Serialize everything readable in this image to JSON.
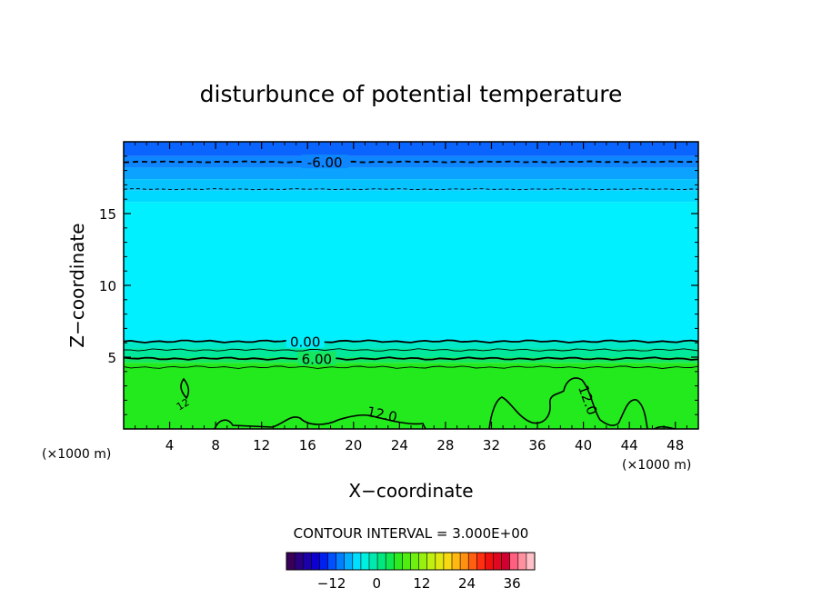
{
  "chart_data": {
    "type": "heatmap",
    "title": "disturbunce of potential temperature",
    "xlabel": "X−coordinate",
    "ylabel": "Z−coordinate",
    "x_unit": "(×1000 m)",
    "x_unit_right": "(×1000 m)",
    "xlim": [
      0,
      50
    ],
    "ylim": [
      0,
      20
    ],
    "x_ticks": [
      4,
      8,
      12,
      16,
      20,
      24,
      28,
      32,
      36,
      40,
      44,
      48
    ],
    "y_ticks": [
      5,
      10,
      15
    ],
    "field_layers": [
      {
        "z_from": 19.0,
        "z_to": 20.0,
        "value": -12,
        "color": "#0a64ff"
      },
      {
        "z_from": 18.2,
        "z_to": 19.0,
        "value": -9,
        "color": "#0d86ff"
      },
      {
        "z_from": 17.4,
        "z_to": 18.2,
        "value": -6,
        "color": "#0ba3ff"
      },
      {
        "z_from": 16.6,
        "z_to": 17.4,
        "value": -4.5,
        "color": "#06c2ff"
      },
      {
        "z_from": 15.8,
        "z_to": 16.6,
        "value": -3,
        "color": "#00d9ff"
      },
      {
        "z_from": 6.1,
        "z_to": 15.8,
        "value": 0,
        "color": "#00f0ff"
      },
      {
        "z_from": 5.6,
        "z_to": 6.1,
        "value": 1.5,
        "color": "#00e8c6"
      },
      {
        "z_from": 5.0,
        "z_to": 5.6,
        "value": 3,
        "color": "#00e89a"
      },
      {
        "z_from": 4.6,
        "z_to": 5.0,
        "value": 6,
        "color": "#16e760"
      },
      {
        "z_from": 0.0,
        "z_to": 4.6,
        "value": 9,
        "color": "#22ea1c"
      }
    ],
    "contours": [
      {
        "level": -6.0,
        "z": 18.6,
        "label": "-6.00",
        "label_x": 17.5,
        "style": "dashed"
      },
      {
        "level": -3.0,
        "z": 16.7,
        "label": "",
        "style": "dashed"
      },
      {
        "level": 0.0,
        "z": 6.1,
        "label": "0.00",
        "label_x": 15.8,
        "style": "solid"
      },
      {
        "level": 3.0,
        "z": 5.5,
        "label": "",
        "style": "solid"
      },
      {
        "level": 6.0,
        "z": 4.9,
        "label": "6.00",
        "label_x": 16.8,
        "style": "solid"
      },
      {
        "level": 9.0,
        "z": 4.3,
        "label": "",
        "style": "solid"
      }
    ],
    "contour_12_labels": [
      {
        "text": "12.0",
        "x": 22.4,
        "z": 0.7
      },
      {
        "text": "12.0",
        "x": 40.0,
        "z": 1.9
      },
      {
        "text": "12",
        "x": 5.3,
        "z": 1.5
      }
    ],
    "colorbar": {
      "title": "CONTOUR INTERVAL = 3.000E+00",
      "tick_labels": [
        "−12",
        "0",
        "12",
        "24",
        "36"
      ],
      "tick_values": [
        -12,
        0,
        12,
        24,
        36
      ],
      "range": [
        -24,
        42
      ],
      "colors": [
        "#3a0058",
        "#2a0080",
        "#1c00a8",
        "#0e00d0",
        "#0020f0",
        "#0050ff",
        "#0080ff",
        "#00b0ff",
        "#00dfff",
        "#00f0e0",
        "#00eab0",
        "#00e880",
        "#10e850",
        "#30ea20",
        "#50ee10",
        "#70f010",
        "#98f010",
        "#c0f010",
        "#e0e810",
        "#f8d810",
        "#ffb810",
        "#ff9010",
        "#ff6010",
        "#ff3010",
        "#f01010",
        "#e00820",
        "#d00030",
        "#ff6080",
        "#ff90a0",
        "#ffc0c8"
      ]
    }
  }
}
